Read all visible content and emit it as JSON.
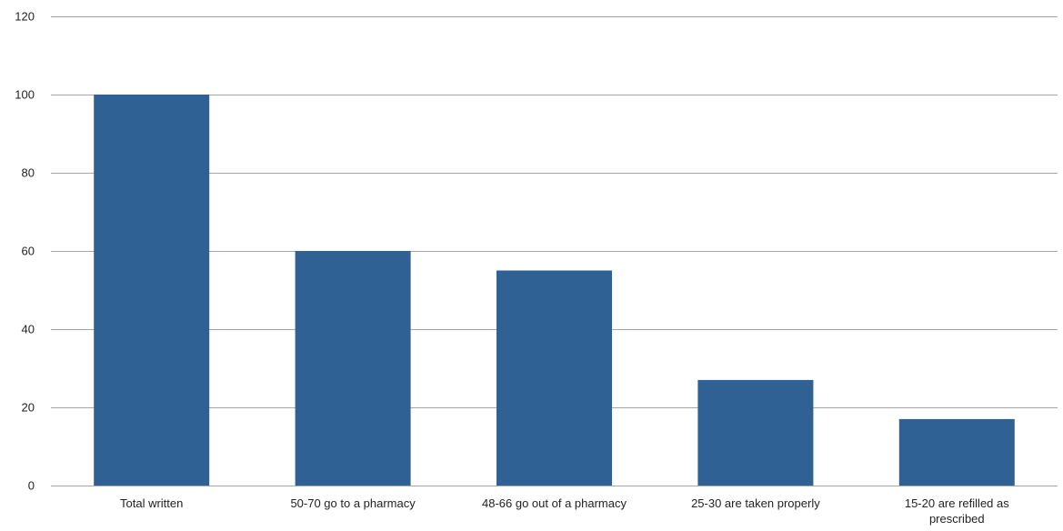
{
  "chart_data": {
    "type": "bar",
    "title": "",
    "xlabel": "",
    "ylabel": "",
    "categories": [
      "Total written",
      "50-70 go to a pharmacy",
      "48-66 go out of a pharmacy",
      "25-30 are taken properly",
      "15-20 are refilled as prescribed"
    ],
    "category_lines": [
      [
        "Total written"
      ],
      [
        "50-70 go to a pharmacy"
      ],
      [
        "48-66 go out of a pharmacy"
      ],
      [
        "25-30 are taken properly"
      ],
      [
        "15-20 are refilled as",
        "prescribed"
      ]
    ],
    "values": [
      100,
      60,
      55,
      27,
      17
    ],
    "ylim": [
      0,
      120
    ],
    "yticks": [
      "0",
      "20",
      "40",
      "60",
      "80",
      "100",
      "120"
    ],
    "grid": true,
    "legend": "none",
    "bar_color": "#2f6195"
  }
}
